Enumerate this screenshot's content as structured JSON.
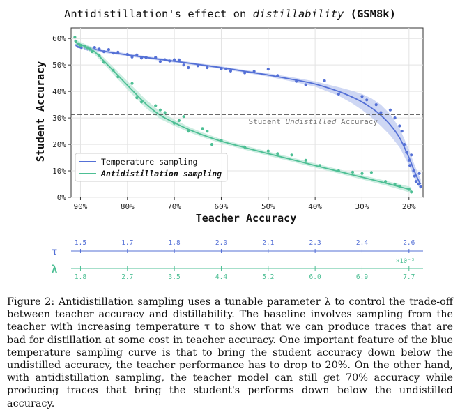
{
  "chart_data": {
    "type": "scatter",
    "title_prefix": "Antidistillation's effect on ",
    "title_italic": "distillability",
    "title_suffix": " (GSM8k)",
    "xlabel": "Teacher Accuracy",
    "ylabel": "Student Accuracy",
    "x_axis_reversed": true,
    "xlim": [
      0.92,
      0.17
    ],
    "ylim": [
      0,
      0.64
    ],
    "x_ticks": [
      0.9,
      0.8,
      0.7,
      0.6,
      0.5,
      0.4,
      0.3,
      0.2
    ],
    "x_tick_labels": [
      "90%",
      "80%",
      "70%",
      "60%",
      "50%",
      "40%",
      "30%",
      "20%"
    ],
    "y_ticks": [
      0,
      0.1,
      0.2,
      0.3,
      0.4,
      0.5,
      0.6
    ],
    "y_tick_labels": [
      "0%",
      "10%",
      "20%",
      "30%",
      "40%",
      "50%",
      "60%"
    ],
    "grid": true,
    "legend_position": "bottom-left",
    "reference_line": {
      "y": 0.313,
      "label_prefix": "Student ",
      "label_italic": "Undistilled",
      "label_suffix": " Accuracy",
      "color": "#555555"
    },
    "series": [
      {
        "name": "Temperature sampling",
        "color": "#5470d6",
        "band_color": "#b9c6f0",
        "points": [
          [
            0.91,
            0.59
          ],
          [
            0.908,
            0.575
          ],
          [
            0.905,
            0.57
          ],
          [
            0.902,
            0.568
          ],
          [
            0.898,
            0.566
          ],
          [
            0.895,
            0.572
          ],
          [
            0.89,
            0.565
          ],
          [
            0.885,
            0.56
          ],
          [
            0.88,
            0.558
          ],
          [
            0.87,
            0.566
          ],
          [
            0.86,
            0.56
          ],
          [
            0.85,
            0.55
          ],
          [
            0.84,
            0.558
          ],
          [
            0.83,
            0.545
          ],
          [
            0.82,
            0.548
          ],
          [
            0.8,
            0.54
          ],
          [
            0.79,
            0.53
          ],
          [
            0.78,
            0.538
          ],
          [
            0.77,
            0.526
          ],
          [
            0.76,
            0.528
          ],
          [
            0.74,
            0.528
          ],
          [
            0.73,
            0.513
          ],
          [
            0.72,
            0.52
          ],
          [
            0.71,
            0.515
          ],
          [
            0.7,
            0.52
          ],
          [
            0.69,
            0.519
          ],
          [
            0.68,
            0.5
          ],
          [
            0.67,
            0.49
          ],
          [
            0.65,
            0.497
          ],
          [
            0.63,
            0.49
          ],
          [
            0.6,
            0.486
          ],
          [
            0.59,
            0.485
          ],
          [
            0.58,
            0.477
          ],
          [
            0.55,
            0.47
          ],
          [
            0.53,
            0.476
          ],
          [
            0.5,
            0.484
          ],
          [
            0.48,
            0.46
          ],
          [
            0.44,
            0.438
          ],
          [
            0.42,
            0.425
          ],
          [
            0.38,
            0.44
          ],
          [
            0.35,
            0.39
          ],
          [
            0.3,
            0.381
          ],
          [
            0.29,
            0.368
          ],
          [
            0.27,
            0.35
          ],
          [
            0.26,
            0.32
          ],
          [
            0.24,
            0.33
          ],
          [
            0.23,
            0.3
          ],
          [
            0.22,
            0.27
          ],
          [
            0.215,
            0.25
          ],
          [
            0.21,
            0.2
          ],
          [
            0.205,
            0.17
          ],
          [
            0.2,
            0.14
          ],
          [
            0.198,
            0.12
          ],
          [
            0.195,
            0.16
          ],
          [
            0.19,
            0.1
          ],
          [
            0.188,
            0.08
          ],
          [
            0.185,
            0.06
          ],
          [
            0.18,
            0.05
          ],
          [
            0.178,
            0.09
          ],
          [
            0.175,
            0.04
          ]
        ],
        "trend": [
          [
            0.91,
            0.575
          ],
          [
            0.85,
            0.552
          ],
          [
            0.8,
            0.538
          ],
          [
            0.75,
            0.526
          ],
          [
            0.7,
            0.514
          ],
          [
            0.65,
            0.502
          ],
          [
            0.6,
            0.49
          ],
          [
            0.55,
            0.476
          ],
          [
            0.5,
            0.462
          ],
          [
            0.45,
            0.446
          ],
          [
            0.4,
            0.428
          ],
          [
            0.35,
            0.4
          ],
          [
            0.32,
            0.378
          ],
          [
            0.3,
            0.36
          ],
          [
            0.28,
            0.338
          ],
          [
            0.26,
            0.31
          ],
          [
            0.24,
            0.274
          ],
          [
            0.22,
            0.225
          ],
          [
            0.2,
            0.15
          ],
          [
            0.19,
            0.105
          ],
          [
            0.18,
            0.065
          ],
          [
            0.175,
            0.05
          ]
        ],
        "band_width": [
          0.008,
          0.006,
          0.005,
          0.005,
          0.005,
          0.005,
          0.005,
          0.005,
          0.006,
          0.008,
          0.01,
          0.016,
          0.024,
          0.03,
          0.036,
          0.04,
          0.04,
          0.036,
          0.03,
          0.026,
          0.022,
          0.02
        ]
      },
      {
        "name": "Antidistillation sampling",
        "name_italic": true,
        "color": "#4dbf94",
        "band_color": "#b7e6d4",
        "points": [
          [
            0.912,
            0.605
          ],
          [
            0.91,
            0.59
          ],
          [
            0.905,
            0.58
          ],
          [
            0.9,
            0.574
          ],
          [
            0.89,
            0.57
          ],
          [
            0.885,
            0.565
          ],
          [
            0.88,
            0.56
          ],
          [
            0.875,
            0.55
          ],
          [
            0.86,
            0.535
          ],
          [
            0.85,
            0.51
          ],
          [
            0.83,
            0.48
          ],
          [
            0.82,
            0.455
          ],
          [
            0.79,
            0.43
          ],
          [
            0.78,
            0.376
          ],
          [
            0.77,
            0.36
          ],
          [
            0.74,
            0.346
          ],
          [
            0.73,
            0.33
          ],
          [
            0.72,
            0.32
          ],
          [
            0.7,
            0.28
          ],
          [
            0.69,
            0.29
          ],
          [
            0.68,
            0.305
          ],
          [
            0.67,
            0.25
          ],
          [
            0.64,
            0.26
          ],
          [
            0.63,
            0.25
          ],
          [
            0.62,
            0.2
          ],
          [
            0.6,
            0.215
          ],
          [
            0.55,
            0.19
          ],
          [
            0.5,
            0.175
          ],
          [
            0.48,
            0.165
          ],
          [
            0.45,
            0.16
          ],
          [
            0.42,
            0.14
          ],
          [
            0.39,
            0.12
          ],
          [
            0.35,
            0.1
          ],
          [
            0.32,
            0.095
          ],
          [
            0.3,
            0.09
          ],
          [
            0.28,
            0.094
          ],
          [
            0.25,
            0.06
          ],
          [
            0.23,
            0.05
          ],
          [
            0.22,
            0.042
          ],
          [
            0.2,
            0.03
          ],
          [
            0.195,
            0.02
          ]
        ],
        "trend": [
          [
            0.91,
            0.585
          ],
          [
            0.89,
            0.57
          ],
          [
            0.87,
            0.55
          ],
          [
            0.85,
            0.515
          ],
          [
            0.82,
            0.46
          ],
          [
            0.79,
            0.405
          ],
          [
            0.76,
            0.352
          ],
          [
            0.73,
            0.31
          ],
          [
            0.7,
            0.282
          ],
          [
            0.67,
            0.257
          ],
          [
            0.64,
            0.236
          ],
          [
            0.6,
            0.212
          ],
          [
            0.55,
            0.188
          ],
          [
            0.5,
            0.165
          ],
          [
            0.45,
            0.143
          ],
          [
            0.4,
            0.12
          ],
          [
            0.35,
            0.098
          ],
          [
            0.3,
            0.076
          ],
          [
            0.25,
            0.054
          ],
          [
            0.22,
            0.04
          ],
          [
            0.2,
            0.03
          ],
          [
            0.195,
            0.025
          ]
        ],
        "band_width": [
          0.01,
          0.009,
          0.01,
          0.012,
          0.014,
          0.016,
          0.016,
          0.014,
          0.012,
          0.01,
          0.009,
          0.008,
          0.008,
          0.008,
          0.008,
          0.008,
          0.008,
          0.008,
          0.009,
          0.01,
          0.011,
          0.012
        ]
      }
    ],
    "secondary_axes": [
      {
        "symbol": "τ",
        "color": "#5470d6",
        "tick_labels": [
          "1.5",
          "1.7",
          "1.8",
          "2.0",
          "2.1",
          "2.3",
          "2.4",
          "2.6"
        ]
      },
      {
        "symbol": "λ",
        "color": "#4dbf94",
        "multiplier_label": "×10⁻³",
        "tick_labels": [
          "1.8",
          "2.7",
          "3.5",
          "4.4",
          "5.2",
          "6.0",
          "6.9",
          "7.7"
        ]
      }
    ]
  },
  "caption": "Figure 2: Antidistillation sampling uses a tunable parameter λ to control the trade-off between teacher accuracy and distillability. The baseline involves sampling from the teacher with increasing temperature τ to show that we can produce traces that are bad for distillation at some cost in teacher accuracy. One important feature of the blue temperature sampling curve is that to bring the student accuracy down below the undistilled accuracy, the teacher performance has to drop to 20%. On the other hand, with antidistillation sampling, the teacher model can still get 70% accuracy while producing traces that bring the student's performs down below the undistilled accuracy."
}
